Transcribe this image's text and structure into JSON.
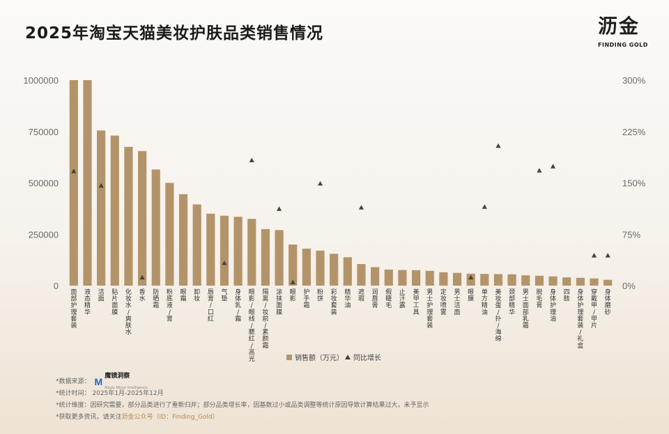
{
  "title": "2025年淘宝天猫美妆护肤品类销售情况",
  "logo": {
    "cn": "沥金",
    "en": "FINDING GOLD"
  },
  "colors": {
    "bar": "#b3946a",
    "marker": "#4a4232",
    "accent": "#b08a55"
  },
  "chart_data": {
    "type": "bar",
    "categories": [
      "面部护理套装",
      "液态精华",
      "洁面",
      "贴片面膜",
      "化妆水/爽肤水",
      "香水",
      "防晒霜",
      "粉底液/膏",
      "眼霜",
      "卸妆",
      "唇膏/口红",
      "气垫",
      "身体乳/霜",
      "眼影/眼线/腮红/高光",
      "隔离/妆前/素颜霜",
      "涂抹面膜",
      "眼影",
      "护手霜",
      "粉饼",
      "彩妆套装",
      "精华油",
      "遮瑕",
      "润唇膏",
      "假睫毛",
      "止汗露",
      "美甲工具",
      "男士护理套装",
      "定妆喷雾",
      "男士洁面",
      "眼膜",
      "单方精油",
      "美妆蛋/扑/海绵",
      "颈部精华",
      "男士面部乳霜",
      "脱毛膏",
      "身体护理油",
      "四肢",
      "身体护理套装/礼盒",
      "穿戴甲/甲片",
      "身体磨砂"
    ],
    "series": [
      {
        "name": "销售额（万元）",
        "type": "bar",
        "axis": "left",
        "values": [
          1000000,
          1000000,
          755000,
          730000,
          675000,
          655000,
          565000,
          500000,
          445000,
          395000,
          350000,
          340000,
          335000,
          325000,
          275000,
          270000,
          200000,
          180000,
          170000,
          155000,
          138000,
          105000,
          90000,
          78000,
          76000,
          75000,
          72000,
          65000,
          62000,
          58000,
          57000,
          56000,
          55000,
          50000,
          48000,
          45000,
          40000,
          38000,
          35000,
          28000
        ]
      },
      {
        "name": "同比增长",
        "type": "scatter",
        "axis": "right",
        "values": [
          1.67,
          null,
          1.46,
          null,
          null,
          0.12,
          null,
          null,
          null,
          null,
          null,
          0.33,
          null,
          1.83,
          null,
          1.12,
          0.05,
          null,
          1.49,
          null,
          null,
          1.14,
          null,
          null,
          null,
          null,
          null,
          null,
          null,
          0.12,
          1.15,
          2.04,
          null,
          null,
          1.68,
          1.74,
          null,
          null,
          0.44,
          0.44
        ]
      }
    ],
    "yaxis_left": {
      "ticks": [
        "0",
        "250000",
        "500000",
        "750000",
        "1000000"
      ],
      "ylim": [
        0,
        1000000
      ]
    },
    "yaxis_right": {
      "ticks": [
        "0%",
        "75%",
        "150%",
        "225%",
        "300%"
      ],
      "ylim": [
        0,
        3
      ]
    },
    "legend": {
      "items": [
        "销售额（万元）",
        "同比增长"
      ],
      "placement": "bottom-right"
    },
    "grid": false
  },
  "notes": {
    "source_label": "*数据来源：",
    "source_name": "魔镜洞察",
    "source_sub": "Magic Mirror Intelligence",
    "period": "*统计时间：  2025年1月-2025年12月",
    "dimension": "*统计维度：因研究需要，部分品类进行了重新归并；部分品类增长率，因基数过小或品类调整等统计原因导致计算结果过大，未予显示",
    "more_prefix": "*获取更多资讯，请关注",
    "more_highlight": "沥金公众号（ID：Finding_Gold）"
  }
}
